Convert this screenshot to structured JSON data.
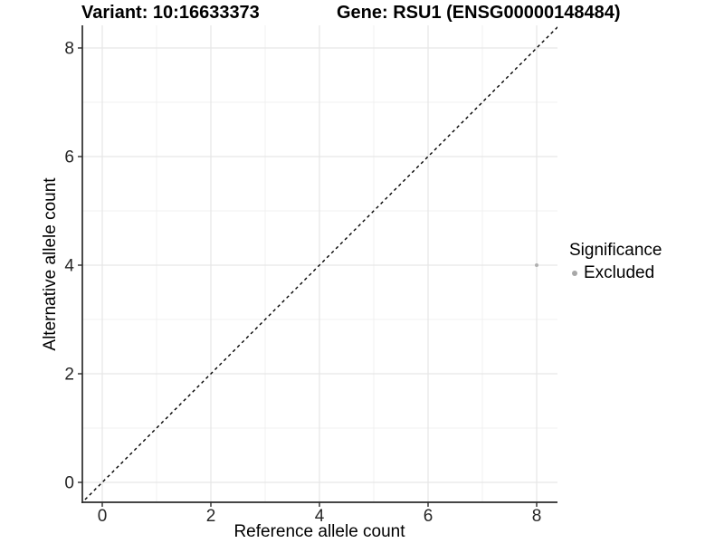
{
  "header": {
    "variant_title": "Variant: 10:16633373",
    "gene_title": "Gene: RSU1 (ENSG00000148484)"
  },
  "axes": {
    "x_label": "Reference allele count",
    "y_label": "Alternative allele count"
  },
  "legend": {
    "title": "Significance",
    "items": [
      {
        "label": "Excluded",
        "color": "#a8a8a8"
      }
    ]
  },
  "chart_data": {
    "type": "scatter",
    "title": "Variant: 10:16633373 | Gene: RSU1 (ENSG00000148484)",
    "xlabel": "Reference allele count",
    "ylabel": "Alternative allele count",
    "xlim": [
      -0.4,
      8.4
    ],
    "ylim": [
      -0.4,
      8.4
    ],
    "x_ticks": [
      0,
      2,
      4,
      6,
      8
    ],
    "y_ticks": [
      0,
      2,
      4,
      6,
      8
    ],
    "x_minor_ticks": [
      1,
      3,
      5,
      7
    ],
    "y_minor_ticks": [
      1,
      3,
      5,
      7
    ],
    "grid": true,
    "legend_position": "right",
    "series": [
      {
        "name": "Excluded",
        "color": "#b0b0b0",
        "points": [
          {
            "x": 8,
            "y": 4
          }
        ]
      }
    ],
    "reference_line": {
      "type": "identity",
      "style": "dashed",
      "color": "#000000"
    }
  },
  "colors": {
    "background": "#ffffff",
    "grid_major": "#e6e6e6",
    "grid_minor": "#f1f1f1",
    "axis_line": "#2b2b2b",
    "tick_label": "#262626",
    "point": "#b0b0b0",
    "legend_dot": "#a8a8a8"
  }
}
